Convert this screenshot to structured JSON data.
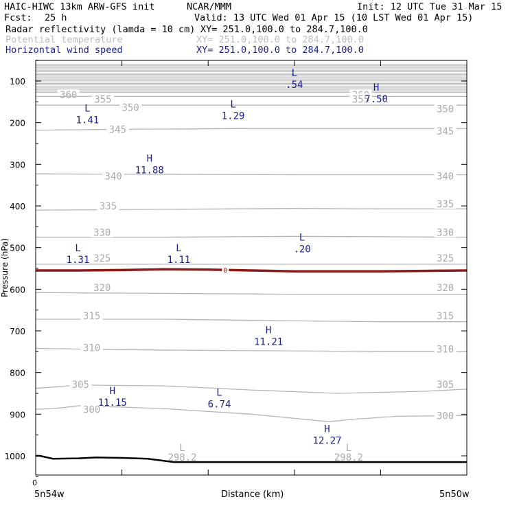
{
  "header": {
    "model": "HAIC-HIWC 13km ARW-GFS init",
    "org": "NCAR/MMM",
    "init": "Init: 12 UTC Tue 31 Mar 15",
    "fcst_label": "Fcst:",
    "fcst_value": "25 h",
    "valid": "Valid: 13 UTC Wed 01 Apr 15 (10 LST Wed 01 Apr 15)",
    "fields": [
      {
        "name": "Radar reflectivity (lamda = 10 cm)",
        "xy": "XY= 251.0,100.0 to 284.7,100.0",
        "color": "#000000"
      },
      {
        "name": "Potential temperature",
        "xy": "XY= 251.0,100.0 to 284.7,100.0",
        "color": "#bdbdbd"
      },
      {
        "name": "Horizontal wind speed",
        "xy": "XY= 251.0,100.0 to 284.7,100.0",
        "color": "#1c1c8c"
      }
    ]
  },
  "colors": {
    "theta": "#b4b4b4",
    "theta_label": "#aaaaaa",
    "wind": "#1c1c8c",
    "reflectivity_zero": "#8b1a1a",
    "terrain": "#000000",
    "frame": "#000000"
  },
  "chart_data": {
    "type": "cross-section",
    "ylabel": "Pressure (hPa)",
    "xlabel": "Distance (km)",
    "x_start_label": "5n54w",
    "x_end_label": "5n50w",
    "x_zero_label": "0",
    "x_range": [
      0,
      5
    ],
    "ylim": [
      1050,
      50
    ],
    "y_ticks": [
      100,
      200,
      300,
      400,
      500,
      600,
      700,
      800,
      900,
      1000
    ],
    "y_tick_labels": [
      "100",
      "200",
      "300",
      "400",
      "500",
      "600",
      "700",
      "800",
      "900",
      "1000"
    ],
    "theta_isentropes": [
      {
        "label": "360",
        "pts": [
          [
            0,
            127
          ],
          [
            1.5,
            127
          ],
          [
            3,
            127
          ],
          [
            5,
            127
          ]
        ],
        "label_pos": [
          [
            0.38,
            135
          ],
          [
            3.77,
            135
          ]
        ]
      },
      {
        "label": "355",
        "pts": [
          [
            0,
            137
          ],
          [
            2,
            137
          ],
          [
            4,
            137
          ],
          [
            5,
            137
          ]
        ],
        "label_pos": [
          [
            0.78,
            145
          ],
          [
            3.77,
            145
          ]
        ]
      },
      {
        "label": "350",
        "pts": [
          [
            0,
            158
          ],
          [
            2.5,
            158
          ],
          [
            4,
            158
          ],
          [
            5,
            158
          ]
        ],
        "label_pos": [
          [
            1.1,
            165
          ],
          [
            4.75,
            168
          ]
        ]
      },
      {
        "label": "345",
        "pts": [
          [
            0,
            218
          ],
          [
            1,
            216
          ],
          [
            2.5,
            214
          ],
          [
            4,
            214
          ],
          [
            5,
            214
          ]
        ],
        "label_pos": [
          [
            0.95,
            218
          ],
          [
            4.75,
            222
          ]
        ]
      },
      {
        "label": "340",
        "pts": [
          [
            0,
            323
          ],
          [
            1.5,
            324
          ],
          [
            3,
            325
          ],
          [
            4,
            325
          ],
          [
            5,
            325
          ]
        ],
        "label_pos": [
          [
            0.9,
            330
          ],
          [
            4.75,
            330
          ]
        ]
      },
      {
        "label": "335",
        "pts": [
          [
            0,
            410
          ],
          [
            1.5,
            408
          ],
          [
            3,
            406
          ],
          [
            4,
            407
          ],
          [
            5,
            407
          ]
        ],
        "label_pos": [
          [
            0.84,
            402
          ],
          [
            4.75,
            397
          ]
        ]
      },
      {
        "label": "330",
        "pts": [
          [
            0,
            475
          ],
          [
            1.5,
            475
          ],
          [
            3,
            473
          ],
          [
            4,
            474
          ],
          [
            5,
            475
          ]
        ],
        "label_pos": [
          [
            0.77,
            465
          ],
          [
            4.75,
            465
          ]
        ]
      },
      {
        "label": "325",
        "pts": [
          [
            0,
            540
          ],
          [
            1.5,
            540
          ],
          [
            3,
            540
          ],
          [
            4,
            540
          ],
          [
            5,
            540
          ]
        ],
        "label_pos": [
          [
            0.77,
            527
          ],
          [
            4.75,
            527
          ]
        ]
      },
      {
        "label": "320",
        "pts": [
          [
            0,
            608
          ],
          [
            1.5,
            610
          ],
          [
            3,
            612
          ],
          [
            4,
            612
          ],
          [
            5,
            612
          ]
        ],
        "label_pos": [
          [
            0.77,
            598
          ],
          [
            4.75,
            598
          ]
        ]
      },
      {
        "label": "315",
        "pts": [
          [
            0,
            672
          ],
          [
            1.5,
            672
          ],
          [
            3,
            676
          ],
          [
            4,
            678
          ],
          [
            5,
            678
          ]
        ],
        "label_pos": [
          [
            0.65,
            665
          ],
          [
            4.75,
            665
          ]
        ]
      },
      {
        "label": "310",
        "pts": [
          [
            0,
            742
          ],
          [
            1,
            745
          ],
          [
            2,
            747
          ],
          [
            3,
            748
          ],
          [
            4,
            750
          ],
          [
            5,
            750
          ]
        ],
        "label_pos": [
          [
            0.65,
            742
          ],
          [
            4.75,
            745
          ]
        ]
      },
      {
        "label": "305",
        "pts": [
          [
            0,
            838
          ],
          [
            0.5,
            830
          ],
          [
            1.5,
            832
          ],
          [
            2.5,
            842
          ],
          [
            3.5,
            850
          ],
          [
            4.5,
            845
          ],
          [
            5,
            840
          ]
        ],
        "label_pos": [
          [
            0.52,
            830
          ],
          [
            4.75,
            830
          ]
        ]
      },
      {
        "label": "300",
        "pts": [
          [
            0,
            888
          ],
          [
            0.2,
            887
          ],
          [
            0.5,
            880
          ],
          [
            1,
            883
          ],
          [
            1.5,
            887
          ],
          [
            2.5,
            900
          ],
          [
            3.4,
            918
          ],
          [
            3.7,
            912
          ],
          [
            4.2,
            905
          ],
          [
            5,
            903
          ]
        ],
        "label_pos": [
          [
            0.65,
            890
          ],
          [
            4.75,
            905
          ]
        ]
      }
    ],
    "upper_levels": {
      "p_top": 60,
      "p_bottom": 127,
      "count": 20
    },
    "theta_extra_labels": [
      {
        "text": "298.2",
        "x": 1.7,
        "y_h": 1000,
        "letter": "L",
        "letter_y": 980
      },
      {
        "text": "298.2",
        "x": 3.63,
        "y_h": 1000,
        "letter": "L",
        "letter_y": 980
      }
    ],
    "wind_extrema": [
      {
        "type": "L",
        "value": ".54",
        "x": 3.0,
        "p": 95
      },
      {
        "type": "H",
        "value": "7.50",
        "x": 3.95,
        "p": 130
      },
      {
        "type": "L",
        "value": "1.41",
        "x": 0.6,
        "p": 180
      },
      {
        "type": "L",
        "value": "1.29",
        "x": 2.29,
        "p": 170
      },
      {
        "type": "H",
        "value": "11.88",
        "x": 1.32,
        "p": 300
      },
      {
        "type": "L",
        "value": "1.31",
        "x": 0.49,
        "p": 515
      },
      {
        "type": "L",
        "value": "1.11",
        "x": 1.66,
        "p": 515
      },
      {
        "type": "L",
        "value": ".20",
        "x": 3.09,
        "p": 490
      },
      {
        "type": "H",
        "value": "11.21",
        "x": 2.7,
        "p": 712
      },
      {
        "type": "H",
        "value": "11.15",
        "x": 0.89,
        "p": 858
      },
      {
        "type": "L",
        "value": "6.74",
        "x": 2.13,
        "p": 862
      },
      {
        "type": "H",
        "value": "12.27",
        "x": 3.38,
        "p": 950
      }
    ],
    "reflectivity_zero_contour": {
      "label": "0",
      "label_x": 2.2,
      "pts": [
        [
          0,
          555
        ],
        [
          0.5,
          555
        ],
        [
          1,
          554
        ],
        [
          1.5,
          552
        ],
        [
          2,
          553
        ],
        [
          2.5,
          555
        ],
        [
          3,
          557
        ],
        [
          3.5,
          557
        ],
        [
          4,
          557
        ],
        [
          4.5,
          556
        ],
        [
          5,
          555
        ]
      ]
    },
    "terrain": {
      "pts": [
        [
          0,
          1000
        ],
        [
          0.05,
          1000
        ],
        [
          0.2,
          1007
        ],
        [
          0.5,
          1006
        ],
        [
          0.7,
          1004
        ],
        [
          1,
          1005
        ],
        [
          1.3,
          1007
        ],
        [
          1.6,
          1015
        ],
        [
          2,
          1015
        ],
        [
          3,
          1015
        ],
        [
          4,
          1015
        ],
        [
          5,
          1015
        ]
      ]
    }
  }
}
